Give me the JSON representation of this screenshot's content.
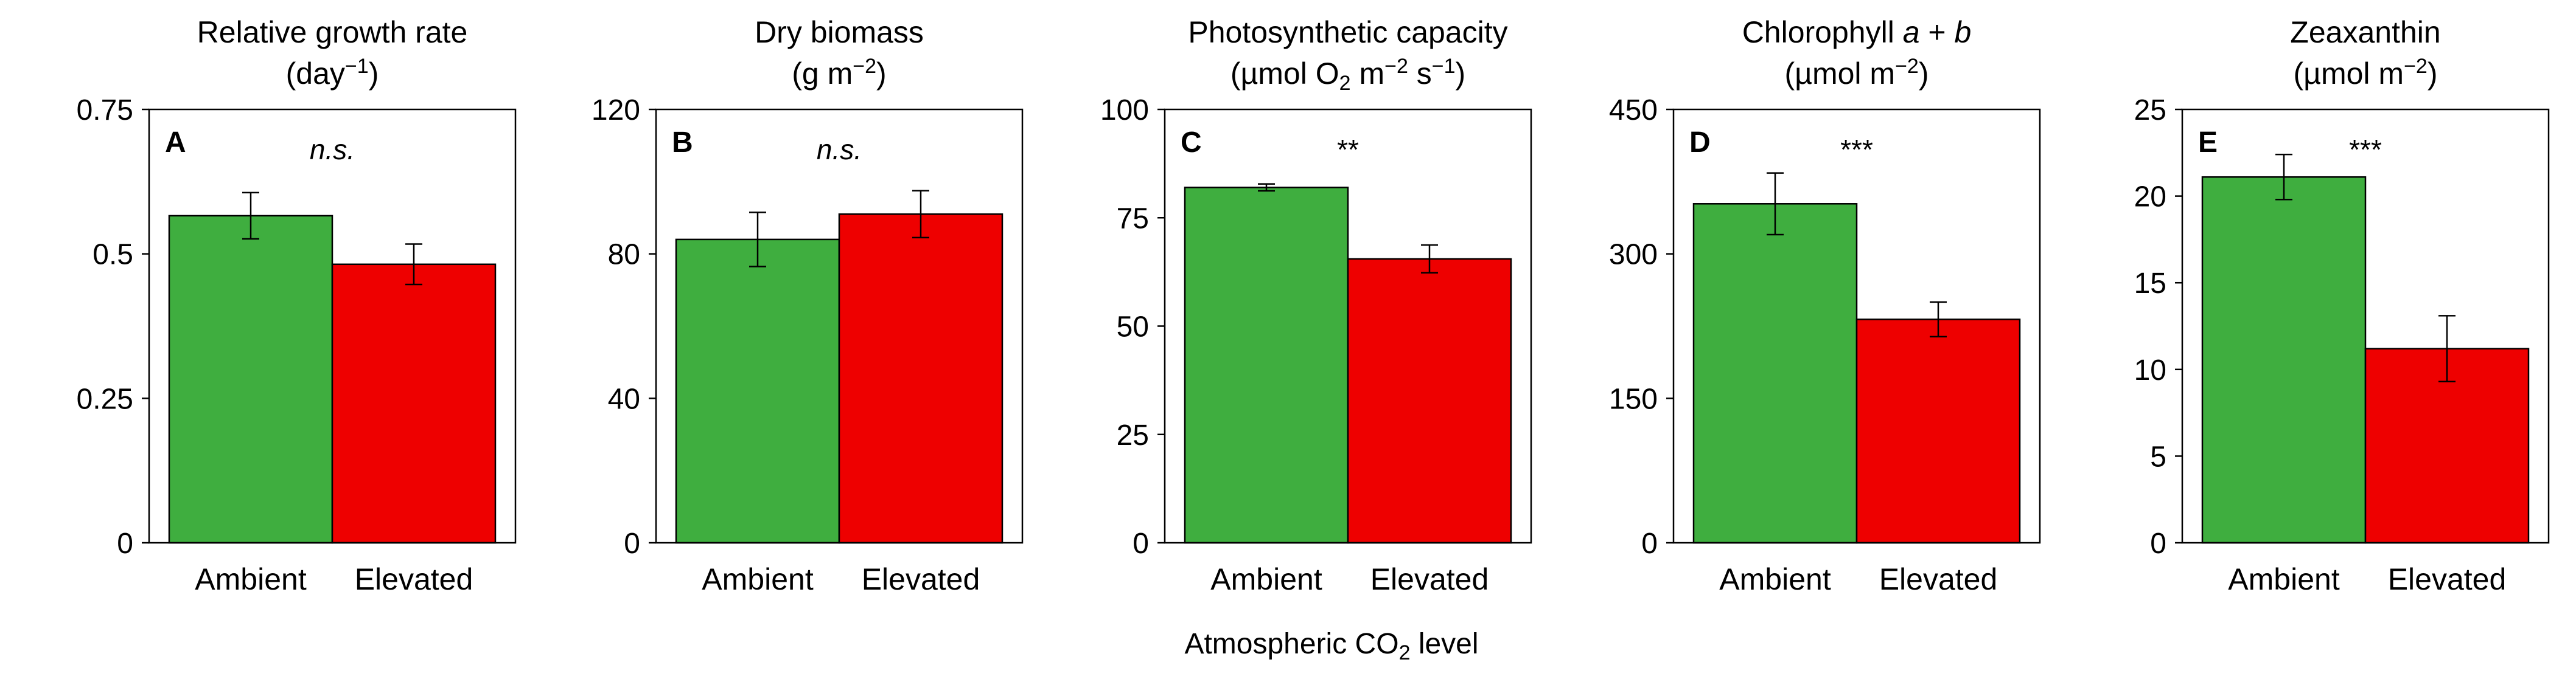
{
  "colors": {
    "ambient": "#3fae3f",
    "elevated": "#ee0000",
    "axis": "#000000",
    "error_bar": "#000000"
  },
  "xlabel": {
    "prefix": "Atmospheric CO",
    "sub": "2",
    "suffix": " level"
  },
  "chart_data": [
    {
      "type": "bar",
      "panel": "A",
      "title": "Relative growth rate",
      "unit": {
        "pre": "(day",
        "sup": "−1",
        "post": ")"
      },
      "categories": [
        "Ambient",
        "Elevated"
      ],
      "values": [
        0.566,
        0.482
      ],
      "errors": [
        0.04,
        0.035
      ],
      "ylim": [
        0,
        0.75
      ],
      "yticks": [
        0,
        0.25,
        0.5,
        0.75
      ],
      "ytick_labels": [
        "0",
        "0.25",
        "0.5",
        "0.75"
      ],
      "significance": "n.s.",
      "significance_italic": true,
      "grid": false
    },
    {
      "type": "bar",
      "panel": "B",
      "title": "Dry biomass",
      "unit": {
        "pre": "(g m",
        "sup": "−2",
        "post": ")"
      },
      "categories": [
        "Ambient",
        "Elevated"
      ],
      "values": [
        84,
        91
      ],
      "errors": [
        7.5,
        6.5
      ],
      "ylim": [
        0,
        120
      ],
      "yticks": [
        0,
        40,
        80,
        120
      ],
      "ytick_labels": [
        "0",
        "40",
        "80",
        "120"
      ],
      "significance": "n.s.",
      "significance_italic": true,
      "grid": false
    },
    {
      "type": "bar",
      "panel": "C",
      "title": "Photosynthetic capacity",
      "unit": {
        "pre": "(µmol O",
        "sub": "2",
        "mid": " m",
        "sup": "−2",
        "mid2": " s",
        "sup2": "−1",
        "post": ")"
      },
      "categories": [
        "Ambient",
        "Elevated"
      ],
      "values": [
        82,
        65.5
      ],
      "errors": [
        0.8,
        3.2
      ],
      "ylim": [
        0,
        100
      ],
      "yticks": [
        0,
        25,
        50,
        75,
        100
      ],
      "ytick_labels": [
        "0",
        "25",
        "50",
        "75",
        "100"
      ],
      "significance": "**",
      "significance_italic": false,
      "grid": false
    },
    {
      "type": "bar",
      "panel": "D",
      "title_pre": "Chlorophyll ",
      "title_it1": "a",
      "title_mid": " + ",
      "title_it2": "b",
      "unit": {
        "pre": "(µmol m",
        "sup": "−2",
        "post": ")"
      },
      "categories": [
        "Ambient",
        "Elevated"
      ],
      "values": [
        352,
        232
      ],
      "errors": [
        32,
        18
      ],
      "ylim": [
        0,
        450
      ],
      "yticks": [
        0,
        150,
        300,
        450
      ],
      "ytick_labels": [
        "0",
        "150",
        "300",
        "450"
      ],
      "significance": "***",
      "significance_italic": false,
      "grid": false
    },
    {
      "type": "bar",
      "panel": "E",
      "title": "Zeaxanthin",
      "unit": {
        "pre": "(µmol m",
        "sup": "−2",
        "post": ")"
      },
      "categories": [
        "Ambient",
        "Elevated"
      ],
      "values": [
        21.1,
        11.2
      ],
      "errors": [
        1.3,
        1.9
      ],
      "ylim": [
        0,
        25
      ],
      "yticks": [
        0,
        5,
        10,
        15,
        20,
        25
      ],
      "ytick_labels": [
        "0",
        "5",
        "10",
        "15",
        "20",
        "25"
      ],
      "significance": "***",
      "significance_italic": false,
      "grid": false
    }
  ]
}
